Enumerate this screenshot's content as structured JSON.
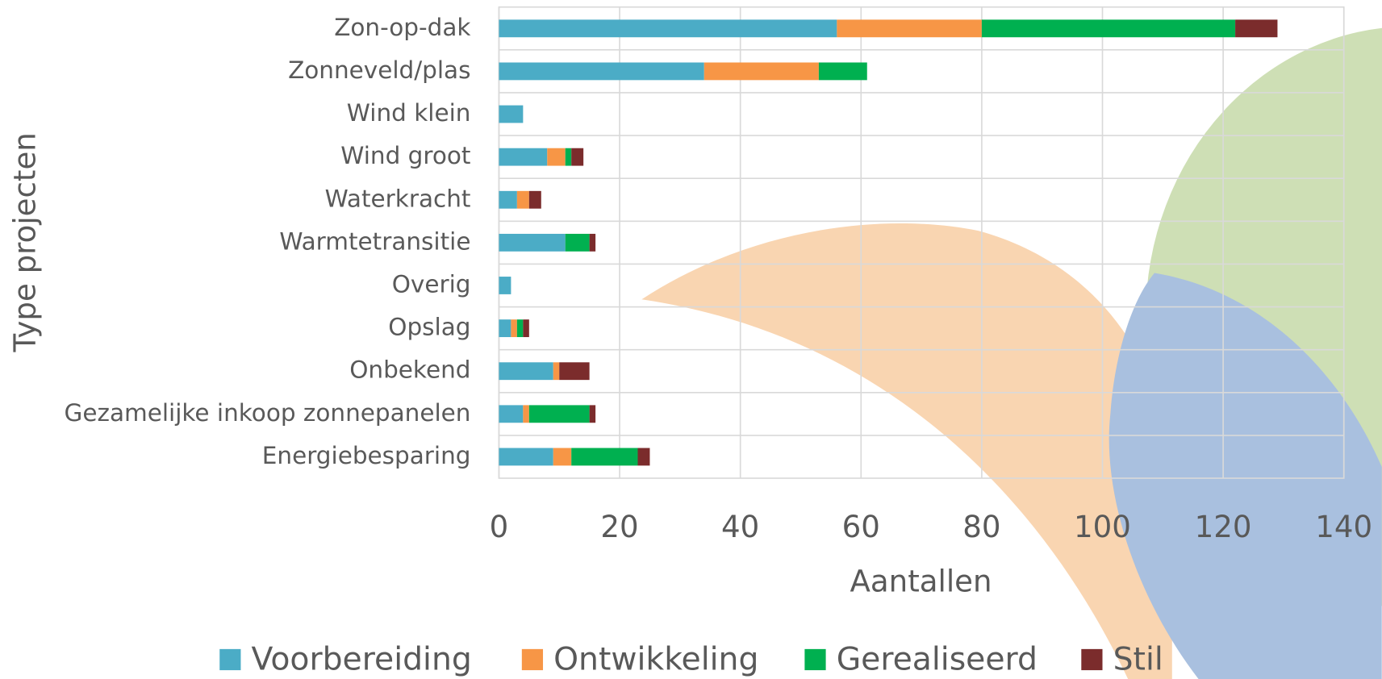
{
  "chart_data": {
    "type": "stacked-bar-horizontal",
    "categories": [
      "Zon-op-dak",
      "Zonneveld/plas",
      "Wind klein",
      "Wind groot",
      "Waterkracht",
      "Warmtetransitie",
      "Overig",
      "Opslag",
      "Onbekend",
      "Gezamelijke inkoop zonnepanelen",
      "Energiebesparing"
    ],
    "series": [
      {
        "name": "Voorbereiding",
        "color": "#4bacc6",
        "values": [
          56,
          34,
          4,
          8,
          3,
          11,
          2,
          2,
          9,
          4,
          9
        ]
      },
      {
        "name": "Ontwikkeling",
        "color": "#f79646",
        "values": [
          24,
          19,
          0,
          3,
          2,
          0,
          0,
          1,
          1,
          1,
          3
        ]
      },
      {
        "name": "Gerealiseerd",
        "color": "#00b050",
        "values": [
          42,
          8,
          0,
          1,
          0,
          4,
          0,
          1,
          0,
          10,
          11
        ]
      },
      {
        "name": "Stil",
        "color": "#7b2c2c",
        "values": [
          7,
          0,
          0,
          2,
          2,
          1,
          0,
          1,
          5,
          1,
          2
        ]
      }
    ],
    "xlabel": "Aantallen",
    "ylabel": "Type projecten",
    "xlim": [
      0,
      140
    ],
    "xticks": [
      0,
      20,
      40,
      60,
      80,
      100,
      120,
      140
    ],
    "grid": true,
    "legend": "bottom"
  }
}
